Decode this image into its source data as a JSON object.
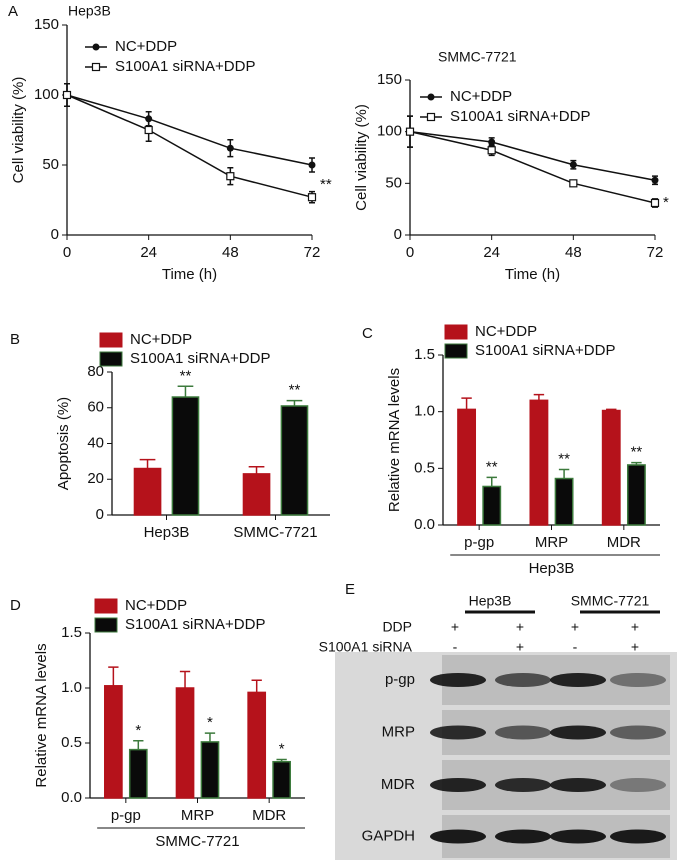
{
  "chart_data": [
    {
      "type": "line",
      "panel": "A",
      "title": "Hep3B",
      "xlabel": "Time (h)",
      "ylabel": "Cell viability (%)",
      "x": [
        0,
        24,
        48,
        72
      ],
      "xlim": [
        0,
        72
      ],
      "xticks": [
        0,
        24,
        48,
        72
      ],
      "ylim": [
        0,
        150
      ],
      "yticks": [
        0,
        50,
        100,
        150
      ],
      "series": [
        {
          "name": "NC+DDP",
          "color": "#111111",
          "marker": "circle",
          "values": [
            100,
            83,
            62,
            50
          ],
          "errors": [
            8,
            5,
            6,
            5
          ]
        },
        {
          "name": "S100A1 siRNA+DDP",
          "color": "#111111",
          "marker": "square",
          "values": [
            100,
            75,
            42,
            27
          ],
          "errors": [
            8,
            8,
            6,
            4
          ]
        }
      ],
      "annotation": "**"
    },
    {
      "type": "line",
      "title": "SMMC-7721",
      "xlabel": "Time (h)",
      "ylabel": "Cell viability (%)",
      "x": [
        0,
        24,
        48,
        72
      ],
      "xlim": [
        0,
        72
      ],
      "xticks": [
        0,
        24,
        48,
        72
      ],
      "ylim": [
        0,
        150
      ],
      "yticks": [
        0,
        50,
        100,
        150
      ],
      "series": [
        {
          "name": "NC+DDP",
          "color": "#111111",
          "marker": "circle",
          "values": [
            100,
            90,
            68,
            53
          ],
          "errors": [
            15,
            4,
            4,
            4
          ]
        },
        {
          "name": "S100A1 siRNA+DDP",
          "color": "#111111",
          "marker": "square",
          "values": [
            100,
            82,
            50,
            31
          ],
          "errors": [
            15,
            5,
            2,
            4
          ]
        }
      ],
      "annotation": "*"
    },
    {
      "type": "bar",
      "panel": "B",
      "ylabel": "Apoptosis (%)",
      "categories": [
        "Hep3B",
        "SMMC-7721"
      ],
      "ylim": [
        0,
        80
      ],
      "yticks": [
        0,
        20,
        40,
        60,
        80
      ],
      "series": [
        {
          "name": "NC+DDP",
          "color": "#b5121b",
          "edgecolor": "#b5121b",
          "values": [
            26,
            23
          ],
          "errors": [
            5,
            4
          ]
        },
        {
          "name": "S100A1 siRNA+DDP",
          "color": "#0a0a0a",
          "edgecolor": "#3c7a3c",
          "values": [
            66,
            61
          ],
          "errors": [
            6,
            3
          ]
        }
      ],
      "annotations": [
        "**",
        "**"
      ]
    },
    {
      "type": "bar",
      "panel": "C",
      "ylabel": "Relative mRNA levels",
      "categories": [
        "p-gp",
        "MRP",
        "MDR"
      ],
      "group_label": "Hep3B",
      "ylim": [
        0,
        1.5
      ],
      "yticks": [
        {
          "value": 0,
          "label": "0.0"
        },
        {
          "value": 0.5,
          "label": "0.5"
        },
        {
          "value": 1,
          "label": "1.0"
        },
        {
          "value": 1.5,
          "label": "1.5"
        }
      ],
      "series": [
        {
          "name": "NC+DDP",
          "color": "#b5121b",
          "edgecolor": "#b5121b",
          "values": [
            1.02,
            1.1,
            1.01
          ],
          "errors": [
            0.1,
            0.05,
            0.01
          ]
        },
        {
          "name": "S100A1 siRNA+DDP",
          "color": "#0a0a0a",
          "edgecolor": "#3c7a3c",
          "values": [
            0.34,
            0.41,
            0.53
          ],
          "errors": [
            0.08,
            0.08,
            0.02
          ]
        }
      ],
      "annotations": [
        "**",
        "**",
        "**"
      ]
    },
    {
      "type": "bar",
      "panel": "D",
      "ylabel": "Relative mRNA levels",
      "categories": [
        "p-gp",
        "MRP",
        "MDR"
      ],
      "group_label": "SMMC-7721",
      "ylim": [
        0,
        1.5
      ],
      "yticks": [
        {
          "value": 0,
          "label": "0.0"
        },
        {
          "value": 0.5,
          "label": "0.5"
        },
        {
          "value": 1,
          "label": "1.0"
        },
        {
          "value": 1.5,
          "label": "1.5"
        }
      ],
      "series": [
        {
          "name": "NC+DDP",
          "color": "#b5121b",
          "edgecolor": "#b5121b",
          "values": [
            1.02,
            1.0,
            0.96
          ],
          "errors": [
            0.17,
            0.15,
            0.11
          ]
        },
        {
          "name": "S100A1 siRNA+DDP",
          "color": "#0a0a0a",
          "edgecolor": "#3c7a3c",
          "values": [
            0.44,
            0.51,
            0.33
          ],
          "errors": [
            0.08,
            0.08,
            0.02
          ]
        }
      ],
      "annotations": [
        "*",
        "*",
        "*"
      ]
    }
  ],
  "blot": {
    "panel": "E",
    "groups": [
      "Hep3B",
      "SMMC-7721"
    ],
    "conditions": [
      {
        "label": "DDP",
        "marks": [
          "+",
          "+",
          "+",
          "+"
        ]
      },
      {
        "label": "S100A1 siRNA",
        "marks": [
          "-",
          "+",
          "-",
          "+"
        ]
      }
    ],
    "proteins": [
      "p-gp",
      "MRP",
      "MDR",
      "GAPDH"
    ]
  }
}
